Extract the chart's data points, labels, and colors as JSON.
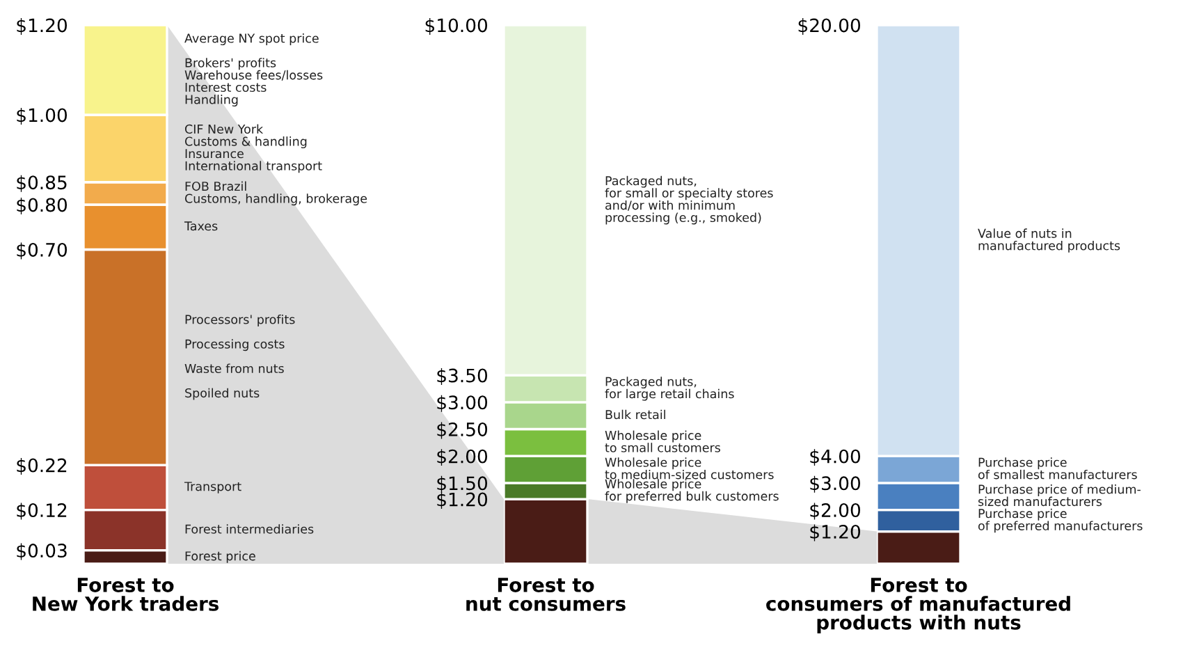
{
  "chart_data": [
    {
      "type": "bar",
      "stacked": true,
      "categories": [
        "Forest to\nNew York traders"
      ],
      "ylim": [
        0,
        1.2
      ],
      "yticks": [
        {
          "value": 0.03,
          "label": "$0.03"
        },
        {
          "value": 0.12,
          "label": "$0.12"
        },
        {
          "value": 0.22,
          "label": "$0.22"
        },
        {
          "value": 0.7,
          "label": "$0.70"
        },
        {
          "value": 0.8,
          "label": "$0.80"
        },
        {
          "value": 0.85,
          "label": "$0.85"
        },
        {
          "value": 1.0,
          "label": "$1.00"
        },
        {
          "value": 1.2,
          "label": "$1.20"
        }
      ],
      "series": [
        {
          "name": "Forest price",
          "color": "#4a1c16",
          "values": [
            0.03
          ]
        },
        {
          "name": "Forest intermediaries",
          "color": "#8b3329",
          "values": [
            0.09
          ]
        },
        {
          "name": "Transport",
          "color": "#bf4f3b",
          "values": [
            0.1
          ]
        },
        {
          "name": "Processors' profits\n\nProcessing costs\n\nWaste from nuts\n\nSpoiled nuts",
          "color": "#c97128",
          "values": [
            0.48
          ]
        },
        {
          "name": "Taxes",
          "color": "#e8902e",
          "values": [
            0.1
          ]
        },
        {
          "name": "FOB Brazil\nCustoms, handling, brokerage",
          "color": "#f2ab4c",
          "values": [
            0.05
          ]
        },
        {
          "name": "CIF New York\nCustoms & handling\nInsurance\nInternational transport",
          "color": "#fbd46a",
          "values": [
            0.15
          ]
        },
        {
          "name": "Average NY spot price\n\nBrokers' profits\nWarehouse fees/losses\nInterest costs\nHandling",
          "color": "#f8f38c",
          "values": [
            0.2
          ]
        }
      ]
    },
    {
      "type": "bar",
      "stacked": true,
      "categories": [
        "Forest to\nnut consumers"
      ],
      "ylim": [
        0,
        10
      ],
      "yticks": [
        {
          "value": 1.2,
          "label": "$1.20"
        },
        {
          "value": 1.5,
          "label": "$1.50"
        },
        {
          "value": 2.0,
          "label": "$2.00"
        },
        {
          "value": 2.5,
          "label": "$2.50"
        },
        {
          "value": 3.0,
          "label": "$3.00"
        },
        {
          "value": 3.5,
          "label": "$3.50"
        },
        {
          "value": 10,
          "label": "$10.00"
        }
      ],
      "series": [
        {
          "color": "#4a1c16",
          "values": [
            1.2
          ]
        },
        {
          "name": "Wholesale price\nfor preferred bulk customers",
          "color": "#4a7a27",
          "values": [
            0.3
          ]
        },
        {
          "name": "Wholesale price\nto medium-sized customers",
          "color": "#5fa036",
          "values": [
            0.5
          ]
        },
        {
          "name": "Wholesale price\nto small customers",
          "color": "#7bbf3f",
          "values": [
            0.5
          ]
        },
        {
          "name": "Bulk retail",
          "color": "#a9d68c",
          "values": [
            0.5
          ]
        },
        {
          "name": "Packaged nuts,\nfor large retail chains",
          "color": "#c7e5b1",
          "values": [
            0.5
          ]
        },
        {
          "name": "Packaged nuts,\nfor small or specialty stores\nand/or with minimum\nprocessing (e.g., smoked)",
          "color": "#e7f4dc",
          "values": [
            6.5
          ]
        }
      ]
    },
    {
      "type": "bar",
      "stacked": true,
      "categories": [
        "Forest to\nconsumers of manufactured\nproducts with nuts"
      ],
      "ylim": [
        0,
        20
      ],
      "yticks": [
        {
          "value": 1.2,
          "label": "$1.20"
        },
        {
          "value": 2.0,
          "label": "$2.00"
        },
        {
          "value": 3.0,
          "label": "$3.00"
        },
        {
          "value": 4.0,
          "label": "$4.00"
        },
        {
          "value": 20,
          "label": "$20.00"
        }
      ],
      "series": [
        {
          "color": "#4a1c16",
          "values": [
            1.2
          ]
        },
        {
          "name": "Purchase price\nof preferred manufacturers",
          "color": "#30609e",
          "values": [
            0.8
          ]
        },
        {
          "name": "Purchase price of medium-\nsized manufacturers",
          "color": "#4a80c0",
          "values": [
            1.0
          ]
        },
        {
          "name": "Purchase price\nof smallest manufacturers",
          "color": "#7ba6d6",
          "values": [
            1.0
          ]
        },
        {
          "name": "Value of nuts in\nmanufactured products",
          "color": "#d0e1f1",
          "values": [
            16.0
          ]
        }
      ]
    }
  ]
}
